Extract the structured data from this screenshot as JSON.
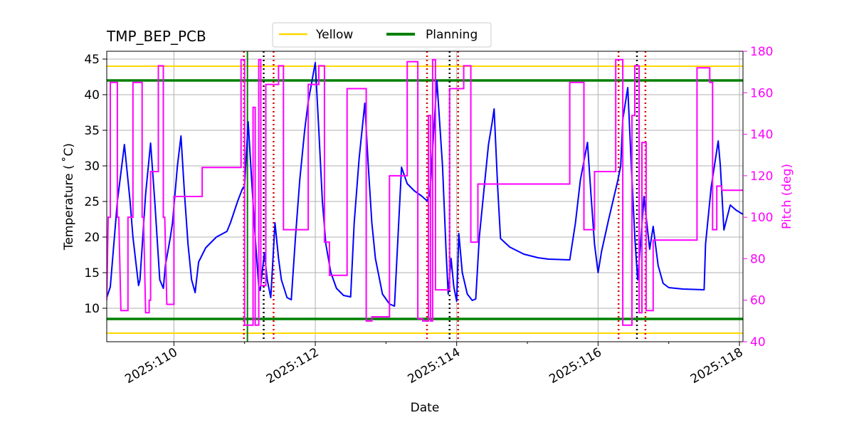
{
  "chart_data": {
    "type": "line",
    "title": "TMP_BEP_PCB",
    "xlabel": "Date",
    "ylabel": "Temperature ($^\\circ$C)",
    "ylabel_display": "Temperature ( ˚C)",
    "y2label": "Pitch (deg)",
    "xlim": [
      109.05,
      118.05
    ],
    "ylim": [
      5.3,
      46.1
    ],
    "y2lim": [
      40,
      180
    ],
    "x_ticks": [
      {
        "value": 110,
        "label": "2025:110"
      },
      {
        "value": 112,
        "label": "2025:112"
      },
      {
        "value": 114,
        "label": "2025:114"
      },
      {
        "value": 116,
        "label": "2025:116"
      },
      {
        "value": 118,
        "label": "2025:118"
      }
    ],
    "x_minor_ticks": [
      111,
      113,
      115,
      117
    ],
    "y_ticks": [
      10,
      15,
      20,
      25,
      30,
      35,
      40,
      45
    ],
    "y2_ticks": [
      40,
      60,
      80,
      100,
      120,
      140,
      160,
      180
    ],
    "grid": true,
    "legend_placement": "top-center",
    "legend": [
      {
        "label": "Yellow",
        "color": "#ffd700"
      },
      {
        "label": "Planning",
        "color": "#008000"
      }
    ],
    "limits": {
      "yellow": [
        6.5,
        44.0
      ],
      "planning": [
        8.5,
        42.0
      ]
    },
    "colors": {
      "temperature": "#0000ff",
      "pitch": "#ff00ff",
      "yellow": "#ffd700",
      "planning": "#008000",
      "red_markers": "#dd0000",
      "black_markers": "#000000",
      "pitch_axis": "#ff00ff"
    },
    "vertical_markers": {
      "red": [
        110.99,
        111.41,
        113.58,
        114.02,
        116.29,
        116.67
      ],
      "black": [
        111.27,
        113.9,
        116.55
      ],
      "green": [
        111.04
      ]
    },
    "series": [
      {
        "axis": "left",
        "points": [
          [
            109.05,
            11.5
          ],
          [
            109.1,
            13
          ],
          [
            109.2,
            25
          ],
          [
            109.3,
            33
          ],
          [
            109.38,
            25
          ],
          [
            109.42,
            20
          ],
          [
            109.5,
            13.2
          ],
          [
            109.52,
            14
          ],
          [
            109.6,
            26
          ],
          [
            109.67,
            33.2
          ],
          [
            109.73,
            25
          ],
          [
            109.8,
            14
          ],
          [
            109.85,
            12.8
          ],
          [
            109.88,
            16
          ],
          [
            109.95,
            20
          ],
          [
            109.98,
            22
          ],
          [
            110.05,
            30
          ],
          [
            110.1,
            34.2
          ],
          [
            110.15,
            26
          ],
          [
            110.2,
            19
          ],
          [
            110.25,
            14
          ],
          [
            110.3,
            12.2
          ],
          [
            110.32,
            14
          ],
          [
            110.35,
            16.5
          ],
          [
            110.45,
            18.5
          ],
          [
            110.6,
            20
          ],
          [
            110.75,
            20.8
          ],
          [
            110.8,
            22
          ],
          [
            110.9,
            25
          ],
          [
            110.97,
            26.8
          ],
          [
            111.0,
            27.2
          ],
          [
            111.05,
            36.2
          ],
          [
            111.1,
            28
          ],
          [
            111.15,
            20
          ],
          [
            111.2,
            13
          ],
          [
            111.22,
            12.5
          ],
          [
            111.28,
            17.8
          ],
          [
            111.32,
            14
          ],
          [
            111.37,
            11.5
          ],
          [
            111.43,
            22
          ],
          [
            111.48,
            17
          ],
          [
            111.52,
            14
          ],
          [
            111.6,
            11.5
          ],
          [
            111.66,
            11.2
          ],
          [
            111.72,
            20
          ],
          [
            111.78,
            28
          ],
          [
            111.85,
            35
          ],
          [
            111.9,
            39
          ],
          [
            112.0,
            44.5
          ],
          [
            112.05,
            35
          ],
          [
            112.1,
            25
          ],
          [
            112.15,
            19
          ],
          [
            112.22,
            15
          ],
          [
            112.3,
            12.8
          ],
          [
            112.4,
            11.8
          ],
          [
            112.5,
            11.6
          ],
          [
            112.55,
            22
          ],
          [
            112.62,
            31
          ],
          [
            112.7,
            38.8
          ],
          [
            112.75,
            30
          ],
          [
            112.8,
            22
          ],
          [
            112.85,
            17
          ],
          [
            112.95,
            12
          ],
          [
            113.05,
            10.6
          ],
          [
            113.12,
            10.3
          ],
          [
            113.22,
            29.8
          ],
          [
            113.3,
            27.5
          ],
          [
            113.4,
            26.5
          ],
          [
            113.5,
            25.8
          ],
          [
            113.58,
            25.1
          ],
          [
            113.62,
            26
          ],
          [
            113.72,
            42
          ],
          [
            113.8,
            30
          ],
          [
            113.85,
            18
          ],
          [
            113.88,
            12
          ],
          [
            113.92,
            17
          ],
          [
            113.96,
            13
          ],
          [
            114.0,
            11
          ],
          [
            114.03,
            20.5
          ],
          [
            114.08,
            15
          ],
          [
            114.15,
            12
          ],
          [
            114.22,
            11.1
          ],
          [
            114.27,
            11.3
          ],
          [
            114.32,
            20
          ],
          [
            114.4,
            28
          ],
          [
            114.45,
            33
          ],
          [
            114.5,
            36
          ],
          [
            114.53,
            38
          ],
          [
            114.58,
            27
          ],
          [
            114.62,
            19.8
          ],
          [
            114.75,
            18.6
          ],
          [
            114.95,
            17.6
          ],
          [
            115.15,
            17.1
          ],
          [
            115.3,
            16.9
          ],
          [
            115.6,
            16.8
          ],
          [
            115.68,
            22
          ],
          [
            115.75,
            28
          ],
          [
            115.85,
            33.3
          ],
          [
            115.9,
            26
          ],
          [
            115.95,
            19
          ],
          [
            116.0,
            15
          ],
          [
            116.05,
            18
          ],
          [
            116.15,
            22.5
          ],
          [
            116.28,
            28
          ],
          [
            116.32,
            30
          ],
          [
            116.35,
            36.5
          ],
          [
            116.42,
            41
          ],
          [
            116.47,
            30
          ],
          [
            116.52,
            20
          ],
          [
            116.56,
            14
          ],
          [
            116.6,
            19
          ],
          [
            116.65,
            25.7
          ],
          [
            116.7,
            21
          ],
          [
            116.73,
            18.3
          ],
          [
            116.78,
            21.5
          ],
          [
            116.85,
            16
          ],
          [
            116.92,
            13.5
          ],
          [
            117.0,
            12.9
          ],
          [
            117.2,
            12.7
          ],
          [
            117.5,
            12.6
          ],
          [
            117.52,
            19
          ],
          [
            117.6,
            27
          ],
          [
            117.7,
            33.5
          ],
          [
            117.73,
            30
          ],
          [
            117.78,
            21
          ],
          [
            117.87,
            24.5
          ],
          [
            117.95,
            23.8
          ],
          [
            118.05,
            23.2
          ]
        ]
      },
      {
        "axis": "right",
        "points": [
          [
            109.05,
            60
          ],
          [
            109.07,
            100
          ],
          [
            109.1,
            100
          ],
          [
            109.1,
            165
          ],
          [
            109.2,
            165
          ],
          [
            109.2,
            100
          ],
          [
            109.22,
            100
          ],
          [
            109.25,
            55
          ],
          [
            109.35,
            55
          ],
          [
            109.35,
            100
          ],
          [
            109.42,
            100
          ],
          [
            109.42,
            165
          ],
          [
            109.55,
            165
          ],
          [
            109.55,
            100
          ],
          [
            109.57,
            100
          ],
          [
            109.6,
            54
          ],
          [
            109.65,
            54
          ],
          [
            109.65,
            60
          ],
          [
            109.67,
            60
          ],
          [
            109.67,
            122
          ],
          [
            109.78,
            122
          ],
          [
            109.78,
            173
          ],
          [
            109.85,
            173
          ],
          [
            109.85,
            100
          ],
          [
            109.87,
            100
          ],
          [
            109.9,
            58
          ],
          [
            110.0,
            58
          ],
          [
            110.0,
            110
          ],
          [
            110.4,
            110
          ],
          [
            110.4,
            124
          ],
          [
            110.5,
            124
          ],
          [
            110.5,
            124
          ],
          [
            110.95,
            124
          ],
          [
            110.95,
            176
          ],
          [
            111.0,
            176
          ],
          [
            111.0,
            48
          ],
          [
            111.12,
            48
          ],
          [
            111.12,
            153
          ],
          [
            111.15,
            153
          ],
          [
            111.15,
            48
          ],
          [
            111.2,
            48
          ],
          [
            111.2,
            176
          ],
          [
            111.23,
            176
          ],
          [
            111.23,
            67
          ],
          [
            111.3,
            67
          ],
          [
            111.3,
            164
          ],
          [
            111.48,
            164
          ],
          [
            111.48,
            173
          ],
          [
            111.55,
            173
          ],
          [
            111.55,
            94
          ],
          [
            111.65,
            94
          ],
          [
            111.65,
            94
          ],
          [
            111.75,
            94
          ],
          [
            111.75,
            94
          ],
          [
            111.9,
            94
          ],
          [
            111.9,
            164
          ],
          [
            112.05,
            164
          ],
          [
            112.05,
            173
          ],
          [
            112.13,
            173
          ],
          [
            112.13,
            88
          ],
          [
            112.2,
            88
          ],
          [
            112.2,
            72
          ],
          [
            112.45,
            72
          ],
          [
            112.45,
            162
          ],
          [
            112.72,
            162
          ],
          [
            112.72,
            50
          ],
          [
            112.8,
            50
          ],
          [
            112.8,
            52
          ],
          [
            113.05,
            52
          ],
          [
            113.05,
            120
          ],
          [
            113.3,
            120
          ],
          [
            113.3,
            175
          ],
          [
            113.45,
            175
          ],
          [
            113.45,
            51
          ],
          [
            113.52,
            51
          ],
          [
            113.52,
            50
          ],
          [
            113.6,
            50
          ],
          [
            113.6,
            149
          ],
          [
            113.63,
            149
          ],
          [
            113.63,
            50
          ],
          [
            113.66,
            50
          ],
          [
            113.66,
            176
          ],
          [
            113.7,
            176
          ],
          [
            113.7,
            65
          ],
          [
            113.9,
            65
          ],
          [
            113.9,
            162
          ],
          [
            114.1,
            162
          ],
          [
            114.1,
            173
          ],
          [
            114.2,
            173
          ],
          [
            114.2,
            88
          ],
          [
            114.3,
            88
          ],
          [
            114.3,
            116
          ],
          [
            114.8,
            116
          ],
          [
            114.8,
            116
          ],
          [
            115.6,
            116
          ],
          [
            115.6,
            165
          ],
          [
            115.8,
            165
          ],
          [
            115.8,
            94
          ],
          [
            115.95,
            94
          ],
          [
            115.95,
            122
          ],
          [
            116.25,
            122
          ],
          [
            116.25,
            176
          ],
          [
            116.35,
            176
          ],
          [
            116.35,
            48
          ],
          [
            116.48,
            48
          ],
          [
            116.48,
            149
          ],
          [
            116.52,
            149
          ],
          [
            116.52,
            173
          ],
          [
            116.58,
            173
          ],
          [
            116.58,
            54
          ],
          [
            116.62,
            54
          ],
          [
            116.62,
            136
          ],
          [
            116.68,
            136
          ],
          [
            116.68,
            55
          ],
          [
            116.78,
            55
          ],
          [
            116.78,
            89
          ],
          [
            117.0,
            89
          ],
          [
            117.0,
            89
          ],
          [
            117.4,
            89
          ],
          [
            117.4,
            172
          ],
          [
            117.58,
            172
          ],
          [
            117.58,
            165
          ],
          [
            117.62,
            165
          ],
          [
            117.62,
            94
          ],
          [
            117.68,
            94
          ],
          [
            117.68,
            115
          ],
          [
            117.75,
            115
          ],
          [
            117.75,
            113
          ],
          [
            118.05,
            113
          ]
        ]
      }
    ]
  }
}
